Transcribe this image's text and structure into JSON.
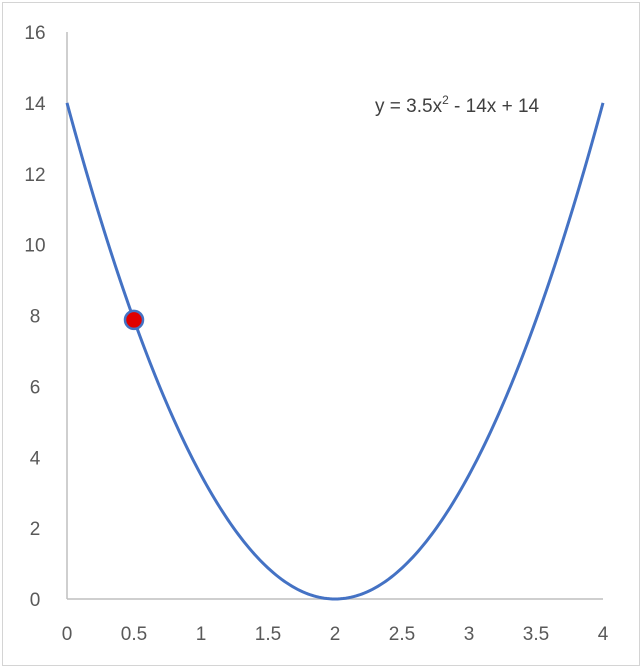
{
  "chart_data": {
    "type": "line",
    "title": "",
    "xlabel": "",
    "ylabel": "",
    "xlim": [
      0,
      4
    ],
    "ylim": [
      0,
      16
    ],
    "grid": false,
    "x_ticks": [
      "0",
      "0.5",
      "1",
      "1.5",
      "2",
      "2.5",
      "3",
      "3.5",
      "4"
    ],
    "y_ticks": [
      "0",
      "2",
      "4",
      "6",
      "8",
      "10",
      "12",
      "14",
      "16"
    ],
    "series": [
      {
        "color": "#4472c4",
        "smooth": true,
        "x": [
          0,
          0.25,
          0.5,
          0.75,
          1,
          1.25,
          1.5,
          1.75,
          2,
          2.25,
          2.5,
          2.75,
          3,
          3.25,
          3.5,
          3.75,
          4
        ],
        "y": [
          14,
          10.72,
          7.875,
          5.47,
          3.5,
          1.97,
          0.875,
          0.22,
          0,
          0.22,
          0.875,
          1.97,
          3.5,
          5.47,
          7.875,
          10.72,
          14
        ]
      }
    ],
    "highlight_point": {
      "x": 0.5,
      "y": 7.875,
      "color": "#e00000",
      "edge_color": "#4472c4"
    },
    "trendline_equation": {
      "text": "y = 3.5x² - 14x + 14",
      "prefix": "y = 3.5x",
      "sup": "2",
      "suffix": " - 14x + 14",
      "coefficients": [
        3.5,
        -14,
        14
      ]
    }
  }
}
